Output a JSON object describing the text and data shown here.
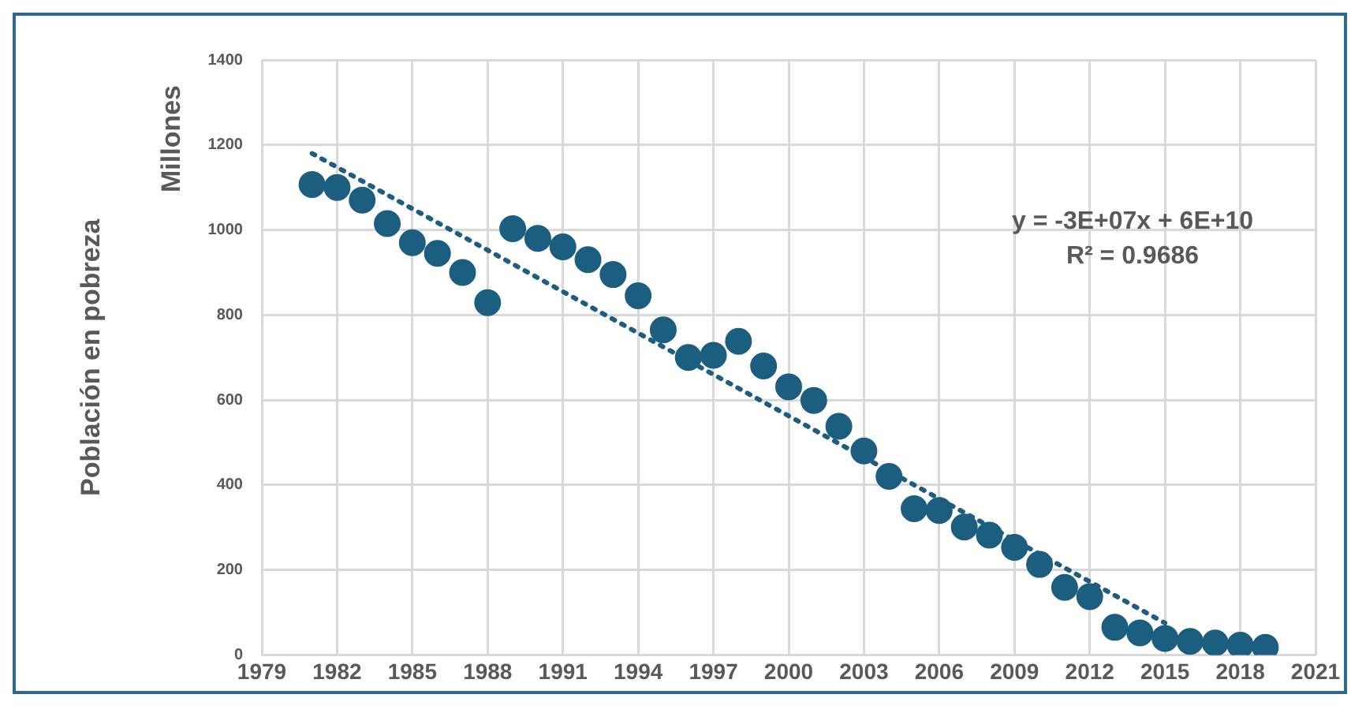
{
  "chart_data": {
    "type": "scatter",
    "ylabel": "Población en pobreza",
    "annotations": [
      "Millones",
      "y = -3E+07x + 6E+10",
      "R² = 0.9686"
    ],
    "xlim": [
      1979,
      2021
    ],
    "xticks": [
      1979,
      1982,
      1985,
      1988,
      1991,
      1994,
      1997,
      2000,
      2003,
      2006,
      2009,
      2012,
      2015,
      2018,
      2021
    ],
    "ylim": [
      0,
      1400
    ],
    "yticks": [
      0,
      200,
      400,
      600,
      800,
      1000,
      1200,
      1400
    ],
    "grid": true,
    "legend": false,
    "marker": "circle",
    "series": [
      {
        "color": "#1b5e80",
        "x": [
          1981,
          1982,
          1983,
          1984,
          1985,
          1986,
          1987,
          1988,
          1989,
          1990,
          1991,
          1992,
          1993,
          1994,
          1995,
          1996,
          1997,
          1998,
          1999,
          2000,
          2001,
          2002,
          2003,
          2004,
          2005,
          2006,
          2007,
          2008,
          2009,
          2010,
          2011,
          2012,
          2013,
          2014,
          2015,
          2016,
          2017,
          2018,
          2019
        ],
        "values": [
          1107,
          1100,
          1070,
          1015,
          970,
          945,
          900,
          829,
          1003,
          980,
          960,
          930,
          895,
          845,
          765,
          700,
          705,
          738,
          680,
          631,
          599,
          538,
          480,
          420,
          344,
          340,
          301,
          282,
          253,
          213,
          159,
          137,
          65,
          52,
          39,
          32,
          28,
          23,
          18
        ]
      },
      {
        "type": "line",
        "color": "#1b5e80",
        "line_style": "dotted",
        "marker": "none",
        "x": [
          1981,
          2015
        ],
        "values": [
          1180,
          75
        ]
      }
    ]
  }
}
